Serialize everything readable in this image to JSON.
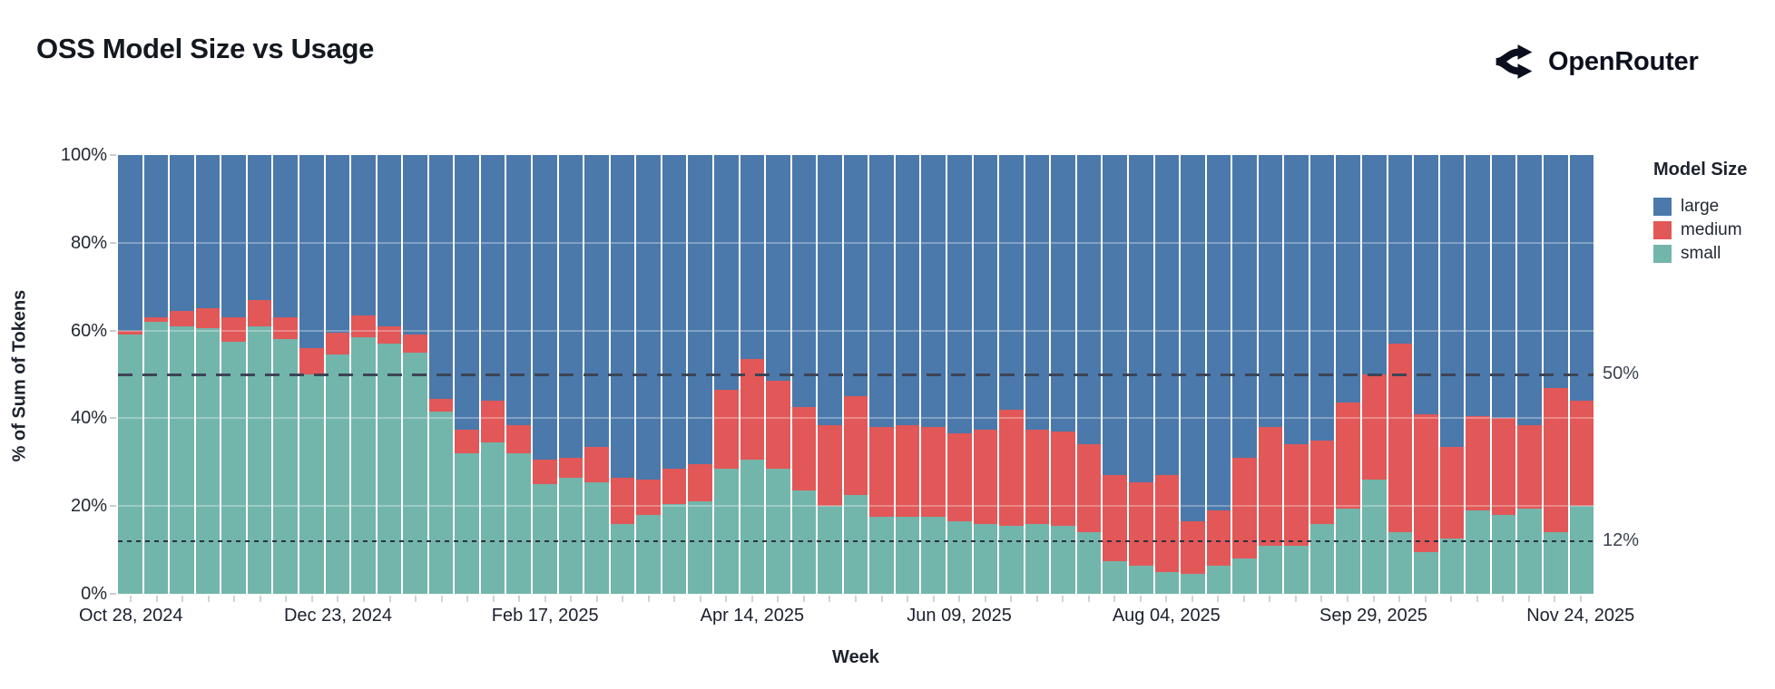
{
  "header": {
    "title": "OSS Model Size vs Usage",
    "brand": "OpenRouter"
  },
  "annotations": {
    "ref_50": "50%",
    "ref_12": "12%"
  },
  "chart_data": {
    "type": "bar",
    "stacked": true,
    "normalized": "percent",
    "title": "OSS Model Size vs Usage",
    "xlabel": "Week",
    "ylabel": "% of Sum of Tokens",
    "ylim": [
      0,
      100
    ],
    "grid": true,
    "legend": {
      "title": "Model Size",
      "position": "right",
      "order": [
        "large",
        "medium",
        "small"
      ]
    },
    "y_ticks": [
      {
        "value": 0,
        "label": "0%"
      },
      {
        "value": 20,
        "label": "20%"
      },
      {
        "value": 40,
        "label": "40%"
      },
      {
        "value": 60,
        "label": "60%"
      },
      {
        "value": 80,
        "label": "80%"
      },
      {
        "value": 100,
        "label": "100%"
      }
    ],
    "x_tick_labels": [
      {
        "index": 0,
        "label": "Oct 28, 2024"
      },
      {
        "index": 8,
        "label": "Dec 23, 2024"
      },
      {
        "index": 16,
        "label": "Feb 17, 2025"
      },
      {
        "index": 24,
        "label": "Apr 14, 2025"
      },
      {
        "index": 32,
        "label": "Jun 09, 2025"
      },
      {
        "index": 40,
        "label": "Aug 04, 2025"
      },
      {
        "index": 48,
        "label": "Sep 29, 2025"
      },
      {
        "index": 56,
        "label": "Nov 24, 2025"
      }
    ],
    "reference_lines": [
      {
        "value": 50,
        "label": "50%",
        "style": "dashed"
      },
      {
        "value": 12,
        "label": "12%",
        "style": "dotted"
      }
    ],
    "weeks": [
      "Oct 28, 2024",
      "Nov 04, 2024",
      "Nov 11, 2024",
      "Nov 18, 2024",
      "Nov 25, 2024",
      "Dec 02, 2024",
      "Dec 09, 2024",
      "Dec 16, 2024",
      "Dec 23, 2024",
      "Dec 30, 2024",
      "Jan 06, 2025",
      "Jan 13, 2025",
      "Jan 20, 2025",
      "Jan 27, 2025",
      "Feb 03, 2025",
      "Feb 10, 2025",
      "Feb 17, 2025",
      "Feb 24, 2025",
      "Mar 03, 2025",
      "Mar 10, 2025",
      "Mar 17, 2025",
      "Mar 24, 2025",
      "Mar 31, 2025",
      "Apr 07, 2025",
      "Apr 14, 2025",
      "Apr 21, 2025",
      "Apr 28, 2025",
      "May 05, 2025",
      "May 12, 2025",
      "May 19, 2025",
      "May 26, 2025",
      "Jun 02, 2025",
      "Jun 09, 2025",
      "Jun 16, 2025",
      "Jun 23, 2025",
      "Jun 30, 2025",
      "Jul 07, 2025",
      "Jul 14, 2025",
      "Jul 21, 2025",
      "Jul 28, 2025",
      "Aug 04, 2025",
      "Aug 11, 2025",
      "Aug 18, 2025",
      "Aug 25, 2025",
      "Sep 01, 2025",
      "Sep 08, 2025",
      "Sep 15, 2025",
      "Sep 22, 2025",
      "Sep 29, 2025",
      "Oct 06, 2025",
      "Oct 13, 2025",
      "Oct 20, 2025",
      "Oct 27, 2025",
      "Nov 03, 2025",
      "Nov 10, 2025",
      "Nov 17, 2025",
      "Nov 24, 2025"
    ],
    "series": [
      {
        "name": "small",
        "color": "#72b5ab",
        "values": [
          59,
          62,
          61,
          60.5,
          57.5,
          61,
          58,
          50,
          54.5,
          58.5,
          57,
          55,
          41.5,
          32,
          34.5,
          32,
          25,
          26.5,
          25.5,
          16,
          18,
          20.5,
          21,
          28.5,
          30.5,
          28.5,
          23.5,
          20,
          22.5,
          17.5,
          17.5,
          17.5,
          16.5,
          16,
          15.5,
          16,
          15.5,
          14,
          7.5,
          6.5,
          5,
          4.5,
          6.5,
          8,
          11,
          11,
          16,
          19.5,
          26,
          14,
          9.5,
          12.5,
          19,
          18,
          19.5,
          14,
          20
        ]
      },
      {
        "name": "medium",
        "color": "#e25757",
        "values": [
          1,
          1,
          3.5,
          4.5,
          5.5,
          6,
          5,
          6,
          5,
          5,
          4,
          4,
          3,
          5.5,
          9.5,
          6.5,
          5.5,
          4.5,
          8,
          10.5,
          8,
          8,
          8.5,
          18,
          23,
          20,
          19,
          18.5,
          22.5,
          20.5,
          21,
          20.5,
          20,
          21.5,
          26.5,
          21.5,
          21.5,
          20,
          19.5,
          19,
          22,
          12,
          12.5,
          23,
          27,
          23,
          19,
          24,
          24,
          43,
          31.5,
          21,
          21.5,
          22,
          19,
          33,
          24
        ]
      },
      {
        "name": "large",
        "color": "#4b79ab",
        "values": [
          40,
          37,
          35.5,
          35,
          37,
          33,
          37,
          44,
          40.5,
          36.5,
          39,
          41,
          55.5,
          62.5,
          56,
          61.5,
          69.5,
          69,
          66.5,
          73.5,
          74,
          71.5,
          70.5,
          53.5,
          46.5,
          51.5,
          57.5,
          61.5,
          55,
          62,
          61.5,
          62,
          63.5,
          62.5,
          58,
          62.5,
          63,
          66,
          73,
          74.5,
          73,
          83.5,
          81,
          69,
          62,
          66,
          65,
          56.5,
          50,
          43,
          59,
          66.5,
          59.5,
          60,
          61.5,
          53,
          56
        ]
      }
    ]
  }
}
